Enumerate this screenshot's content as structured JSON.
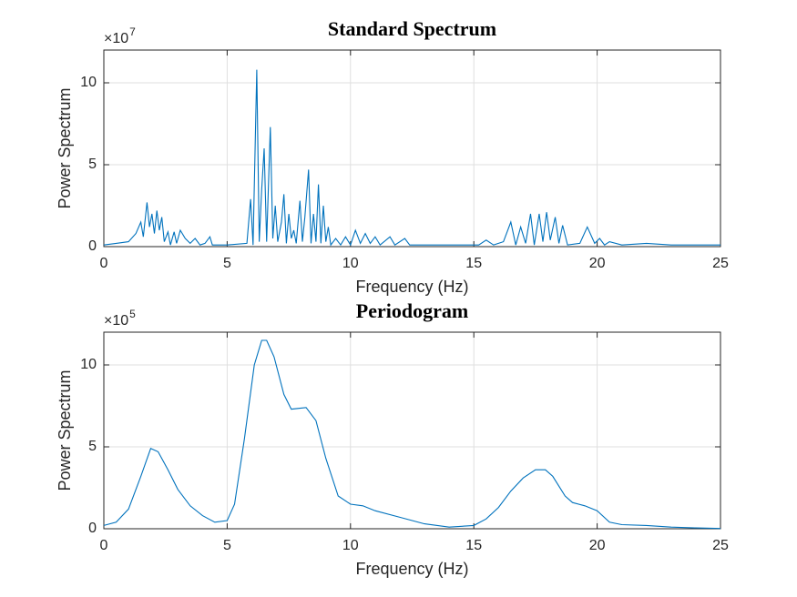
{
  "chart_data": [
    {
      "type": "line",
      "title": "Standard Spectrum",
      "xlabel": "Frequency (Hz)",
      "ylabel": "Power Spectrum",
      "y_exponent_base": "×10",
      "y_exponent": "7",
      "color": "#0072bd",
      "grid": true,
      "xlim": [
        0,
        25
      ],
      "xticks": [
        0,
        5,
        10,
        15,
        20,
        25
      ],
      "ylim": [
        0,
        12
      ],
      "yticks": [
        0,
        5,
        10
      ],
      "x": [
        0,
        0.5,
        1,
        1.3,
        1.5,
        1.6,
        1.75,
        1.85,
        1.95,
        2.05,
        2.15,
        2.25,
        2.35,
        2.45,
        2.6,
        2.7,
        2.85,
        2.95,
        3.1,
        3.3,
        3.5,
        3.7,
        3.9,
        4.1,
        4.3,
        4.4,
        5,
        5.8,
        5.95,
        6.05,
        6.2,
        6.3,
        6.4,
        6.5,
        6.6,
        6.75,
        6.85,
        6.95,
        7.05,
        7.2,
        7.3,
        7.4,
        7.5,
        7.6,
        7.7,
        7.8,
        7.95,
        8.05,
        8.15,
        8.3,
        8.4,
        8.5,
        8.6,
        8.7,
        8.8,
        8.9,
        9,
        9.1,
        9.2,
        9.4,
        9.6,
        9.8,
        10,
        10.2,
        10.4,
        10.6,
        10.8,
        11,
        11.2,
        11.6,
        11.8,
        12.2,
        12.4,
        13,
        14,
        15.2,
        15.5,
        15.8,
        16.2,
        16.5,
        16.7,
        16.9,
        17.1,
        17.3,
        17.45,
        17.65,
        17.8,
        17.95,
        18.1,
        18.3,
        18.45,
        18.6,
        18.8,
        19.3,
        19.6,
        19.9,
        20.1,
        20.3,
        20.5,
        21,
        22,
        23,
        25
      ],
      "values": [
        0.1,
        0.2,
        0.3,
        0.8,
        1.5,
        0.6,
        2.7,
        1.2,
        2.0,
        0.8,
        2.2,
        1.0,
        1.8,
        0.3,
        0.9,
        0.1,
        0.9,
        0.2,
        1.0,
        0.5,
        0.2,
        0.5,
        0.1,
        0.2,
        0.6,
        0.1,
        0.1,
        0.2,
        2.9,
        0.1,
        10.8,
        0.3,
        3.5,
        6.0,
        0.3,
        7.3,
        0.5,
        2.5,
        0.3,
        1.5,
        3.2,
        0.2,
        2.0,
        0.5,
        1.0,
        0.2,
        2.8,
        0.3,
        1.8,
        4.7,
        0.2,
        2.0,
        0.3,
        3.8,
        0.2,
        2.5,
        0.3,
        1.2,
        0.1,
        0.5,
        0.1,
        0.6,
        0.1,
        1.0,
        0.2,
        0.8,
        0.2,
        0.6,
        0.1,
        0.6,
        0.1,
        0.5,
        0.1,
        0.1,
        0.1,
        0.1,
        0.4,
        0.1,
        0.3,
        1.5,
        0.1,
        1.2,
        0.2,
        2.0,
        0.1,
        2.0,
        0.3,
        2.1,
        0.4,
        1.8,
        0.2,
        1.3,
        0.1,
        0.2,
        1.2,
        0.2,
        0.5,
        0.1,
        0.3,
        0.1,
        0.2,
        0.1,
        0.1
      ]
    },
    {
      "type": "line",
      "title": "Periodogram",
      "xlabel": "Frequency (Hz)",
      "ylabel": "Power Spectrum",
      "y_exponent_base": "×10",
      "y_exponent": "5",
      "color": "#0072bd",
      "grid": true,
      "xlim": [
        0,
        25
      ],
      "xticks": [
        0,
        5,
        10,
        15,
        20,
        25
      ],
      "ylim": [
        0,
        12
      ],
      "yticks": [
        0,
        5,
        10
      ],
      "x": [
        0,
        0.5,
        1,
        1.5,
        1.9,
        2.2,
        2.6,
        3,
        3.5,
        4,
        4.5,
        5,
        5.3,
        5.7,
        6.1,
        6.4,
        6.6,
        6.9,
        7.3,
        7.6,
        8.2,
        8.6,
        9,
        9.5,
        10,
        10.5,
        11,
        12,
        13,
        14,
        15,
        15.5,
        16,
        16.5,
        17,
        17.5,
        17.9,
        18.2,
        18.7,
        19,
        19.5,
        20,
        20.5,
        21,
        22,
        23,
        24,
        25
      ],
      "values": [
        0.2,
        0.4,
        1.2,
        3.2,
        4.9,
        4.7,
        3.6,
        2.4,
        1.4,
        0.8,
        0.4,
        0.5,
        1.5,
        5.5,
        10,
        11.5,
        11.5,
        10.5,
        8.2,
        7.3,
        7.4,
        6.6,
        4.3,
        2.0,
        1.5,
        1.4,
        1.1,
        0.7,
        0.3,
        0.1,
        0.2,
        0.6,
        1.3,
        2.3,
        3.1,
        3.6,
        3.6,
        3.2,
        2.0,
        1.6,
        1.4,
        1.1,
        0.4,
        0.25,
        0.2,
        0.1,
        0.05,
        0.02
      ]
    }
  ]
}
